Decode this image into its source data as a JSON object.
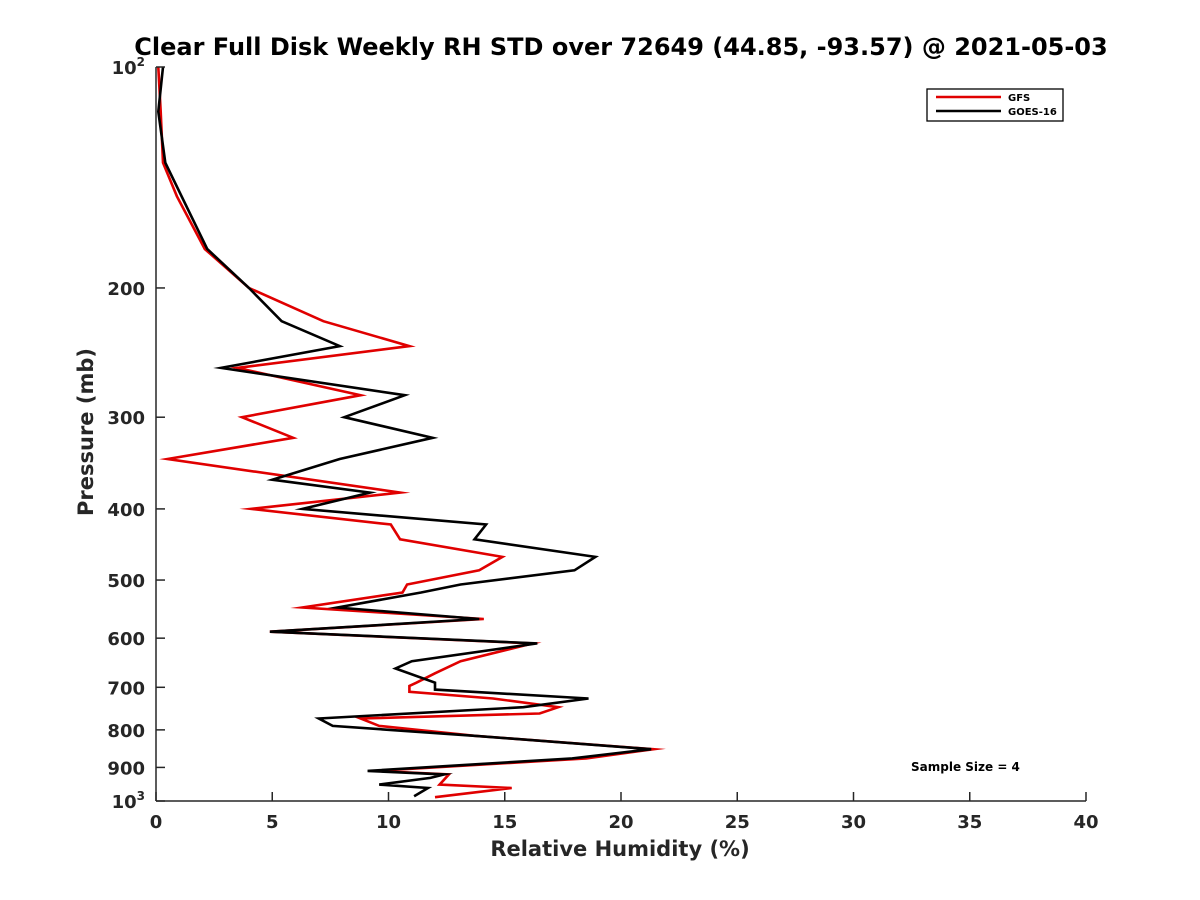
{
  "chart_data": {
    "type": "line",
    "title": "Clear Full Disk Weekly RH STD over 72649 (44.85, -93.57) @ 2021-05-03",
    "xlabel": "Relative Humidity (%)",
    "ylabel": "Pressure (mb)",
    "xlim": [
      0,
      40
    ],
    "ylim": [
      100,
      1000
    ],
    "yscale": "log",
    "y_reversed": true,
    "grid": false,
    "legend_position": "top-right",
    "x_ticks": [
      0,
      5,
      10,
      15,
      20,
      25,
      30,
      35,
      40
    ],
    "x_tick_labels": [
      "0",
      "5",
      "10",
      "15",
      "20",
      "25",
      "30",
      "35",
      "40"
    ],
    "y_ticks": [
      100,
      200,
      300,
      400,
      500,
      600,
      700,
      800,
      900,
      1000
    ],
    "y_tick_labels": [
      {
        "base": "10",
        "sup": "2"
      },
      {
        "base": "200"
      },
      {
        "base": "300"
      },
      {
        "base": "400"
      },
      {
        "base": "500"
      },
      {
        "base": "600"
      },
      {
        "base": "700"
      },
      {
        "base": "800"
      },
      {
        "base": "900"
      },
      {
        "base": "10",
        "sup": "3"
      }
    ],
    "annotation": "Sample Size = 4",
    "series": [
      {
        "name": "GFS",
        "color": "#e00000",
        "points": [
          [
            0.1,
            100
          ],
          [
            0.2,
            115
          ],
          [
            0.3,
            135
          ],
          [
            0.9,
            150
          ],
          [
            2.1,
            177
          ],
          [
            4.0,
            200
          ],
          [
            7.2,
            222
          ],
          [
            10.9,
            240
          ],
          [
            3.5,
            257
          ],
          [
            8.8,
            280
          ],
          [
            3.7,
            300
          ],
          [
            5.9,
            320
          ],
          [
            0.5,
            342
          ],
          [
            10.5,
            380
          ],
          [
            4.1,
            400
          ],
          [
            10.1,
            420
          ],
          [
            10.5,
            440
          ],
          [
            14.9,
            465
          ],
          [
            13.9,
            485
          ],
          [
            10.8,
            507
          ],
          [
            10.6,
            520
          ],
          [
            6.3,
            545
          ],
          [
            14.1,
            565
          ],
          [
            4.9,
            588
          ],
          [
            16.2,
            610
          ],
          [
            13.1,
            645
          ],
          [
            12.0,
            670
          ],
          [
            11.2,
            690
          ],
          [
            10.9,
            697
          ],
          [
            10.9,
            710
          ],
          [
            14.5,
            725
          ],
          [
            17.3,
            745
          ],
          [
            16.5,
            760
          ],
          [
            8.8,
            772
          ],
          [
            9.6,
            790
          ],
          [
            13.7,
            815
          ],
          [
            21.4,
            850
          ],
          [
            18.5,
            875
          ],
          [
            9.4,
            910
          ],
          [
            12.6,
            920
          ],
          [
            12.2,
            950
          ],
          [
            15.3,
            960
          ],
          [
            12.0,
            988
          ]
        ]
      },
      {
        "name": "GOES-16",
        "color": "#000000",
        "points": [
          [
            0.3,
            100
          ],
          [
            0.1,
            115
          ],
          [
            0.4,
            135
          ],
          [
            1.1,
            150
          ],
          [
            2.2,
            177
          ],
          [
            4.0,
            200
          ],
          [
            5.4,
            222
          ],
          [
            7.9,
            240
          ],
          [
            2.8,
            257
          ],
          [
            10.7,
            280
          ],
          [
            8.1,
            300
          ],
          [
            11.9,
            320
          ],
          [
            7.9,
            342
          ],
          [
            5.0,
            365
          ],
          [
            9.2,
            380
          ],
          [
            6.3,
            400
          ],
          [
            14.2,
            420
          ],
          [
            13.7,
            440
          ],
          [
            18.9,
            465
          ],
          [
            18.0,
            485
          ],
          [
            13.1,
            507
          ],
          [
            11.4,
            520
          ],
          [
            7.8,
            545
          ],
          [
            13.9,
            565
          ],
          [
            4.9,
            588
          ],
          [
            16.4,
            610
          ],
          [
            11.0,
            645
          ],
          [
            10.3,
            660
          ],
          [
            12.0,
            690
          ],
          [
            12.0,
            705
          ],
          [
            18.6,
            725
          ],
          [
            15.8,
            745
          ],
          [
            7.0,
            772
          ],
          [
            7.6,
            790
          ],
          [
            13.7,
            815
          ],
          [
            21.3,
            850
          ],
          [
            17.9,
            875
          ],
          [
            9.1,
            910
          ],
          [
            12.4,
            920
          ],
          [
            11.8,
            930
          ],
          [
            9.6,
            950
          ],
          [
            11.7,
            960
          ],
          [
            11.1,
            985
          ]
        ]
      }
    ]
  }
}
